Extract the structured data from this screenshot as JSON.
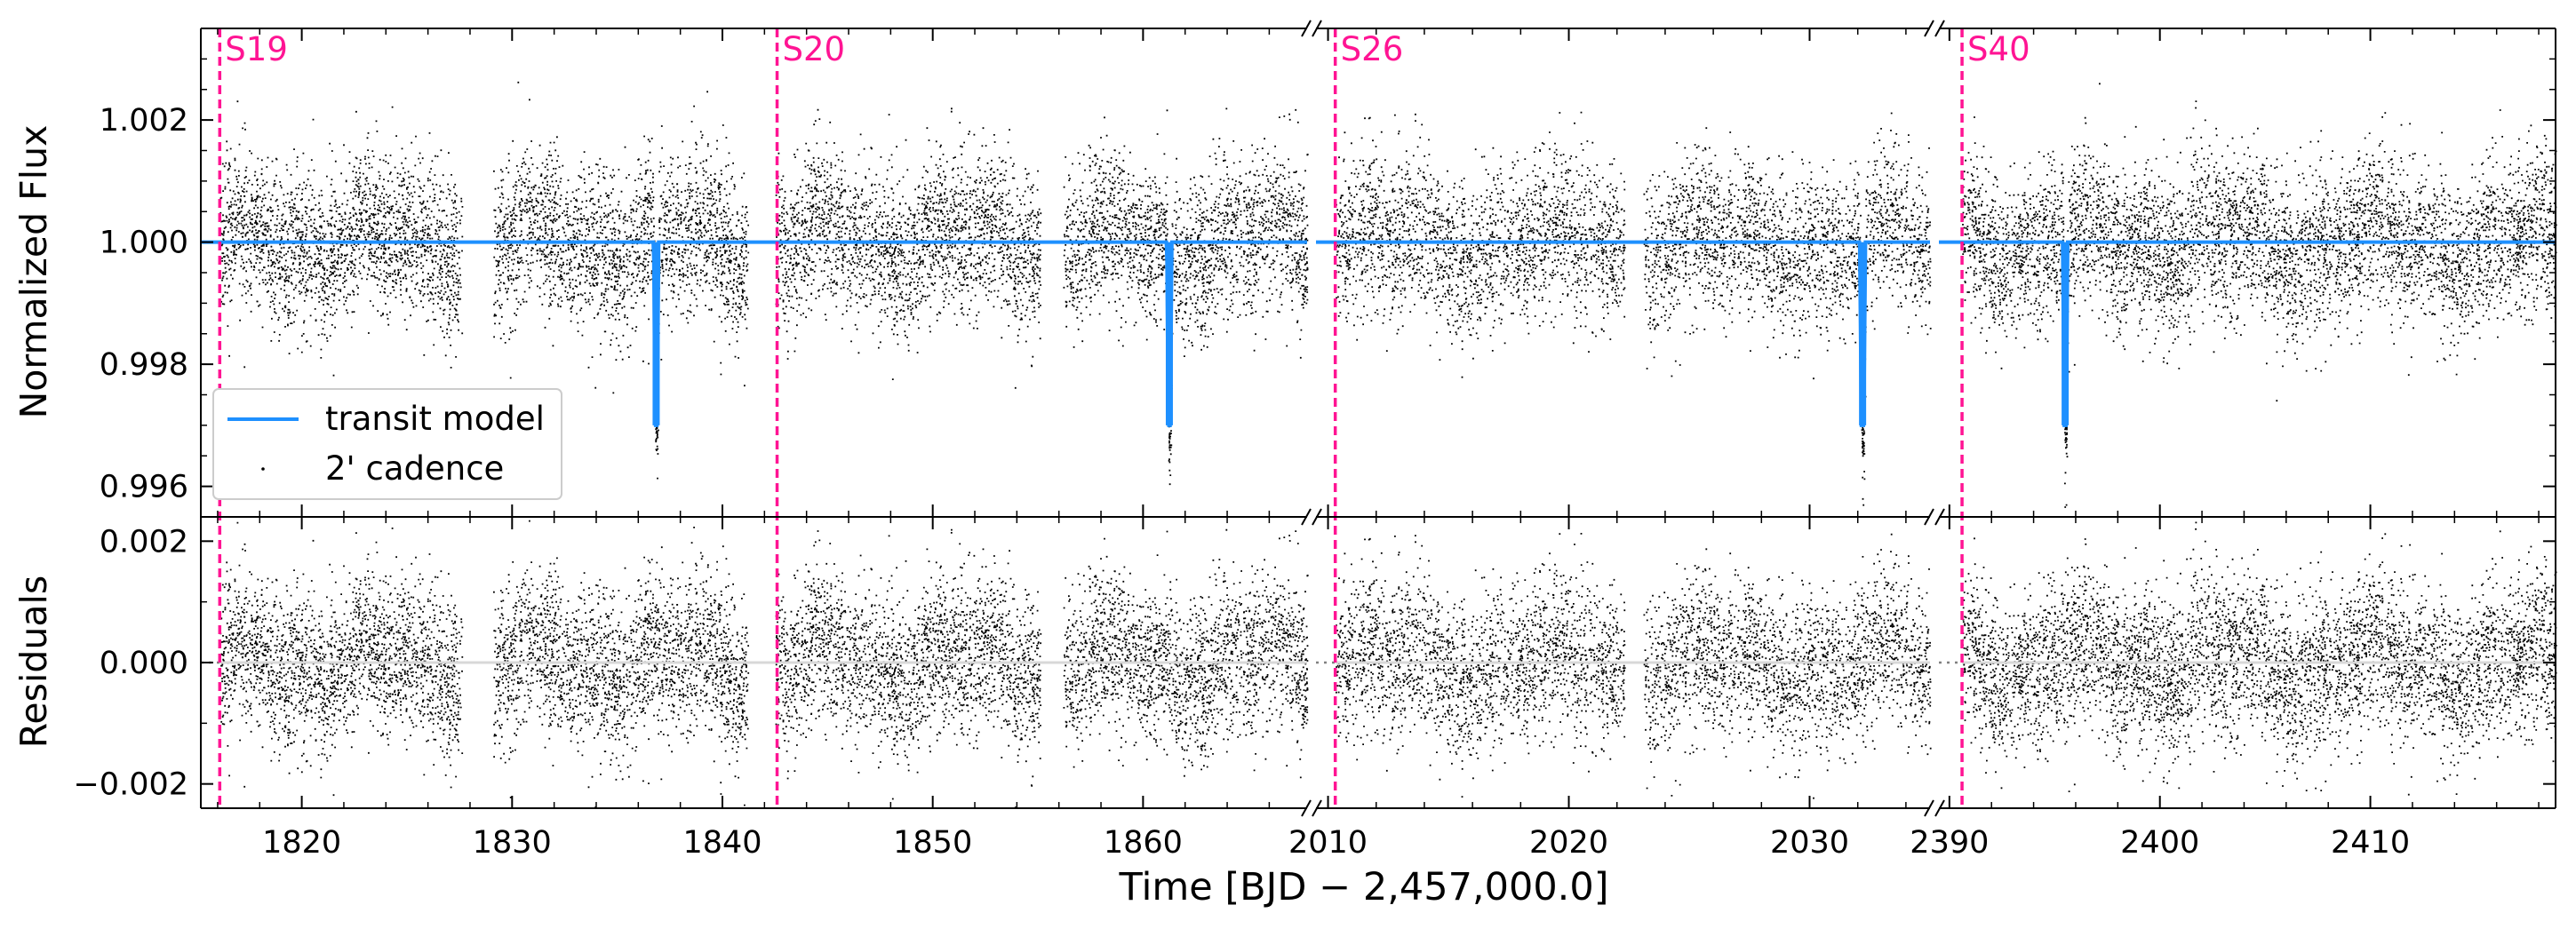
{
  "chart_data": {
    "type": "scatter",
    "xlabel": "Time [BJD − 2,457,000.0]",
    "top_panel": {
      "ylabel": "Normalized Flux",
      "ylim": [
        0.9955,
        1.0035
      ],
      "yticks": [
        "1.002",
        "1.000",
        "0.998",
        "0.996"
      ],
      "ytick_values": [
        1.002,
        1.0,
        0.998,
        0.996
      ],
      "legend": {
        "position": "lower-left",
        "entries": [
          "transit model",
          "2' cadence"
        ]
      }
    },
    "bottom_panel": {
      "ylabel": "Residuals",
      "ylim": [
        -0.0024,
        0.0024
      ],
      "yticks": [
        "0.002",
        "0.000",
        "−0.002"
      ],
      "ytick_values": [
        0.002,
        0.0,
        -0.002
      ]
    },
    "axis_segments": [
      {
        "xlim": [
          1815.2,
          1867.8
        ],
        "xticks": [
          "1820",
          "1830",
          "1840",
          "1850",
          "1860"
        ],
        "xtick_values": [
          1820,
          1830,
          1840,
          1850,
          1860
        ]
      },
      {
        "xlim": [
          2009.5,
          2035.0
        ],
        "xticks": [
          "2010",
          "2020",
          "2030"
        ],
        "xtick_values": [
          2010,
          2020,
          2030
        ]
      },
      {
        "xlim": [
          2389.5,
          2418.8
        ],
        "xticks": [
          "2390",
          "2400",
          "2410"
        ],
        "xtick_values": [
          2390,
          2400,
          2410
        ]
      }
    ],
    "sectors": [
      {
        "label": "S19",
        "x": 1816.1
      },
      {
        "label": "S20",
        "x": 1842.6
      },
      {
        "label": "S26",
        "x": 2010.3
      },
      {
        "label": "S40",
        "x": 2390.6
      }
    ],
    "data_gaps": [
      [
        1827.6,
        1829.1
      ],
      [
        1841.2,
        1842.5
      ],
      [
        1855.1,
        1856.2
      ],
      [
        2022.3,
        2023.1
      ]
    ],
    "series": [
      {
        "name": "transit model",
        "kind": "line",
        "baseline": 1.0,
        "transit_depth": 0.003,
        "transit_times": [
          1836.85,
          1861.25,
          2032.2,
          2395.5
        ]
      },
      {
        "name": "2' cadence",
        "kind": "scatter",
        "scatter_std": 0.00065
      }
    ],
    "colors": {
      "model": "#1e90ff",
      "points": "#000000",
      "sector_line": "#ff1493",
      "residual_zero": "#808080"
    }
  }
}
